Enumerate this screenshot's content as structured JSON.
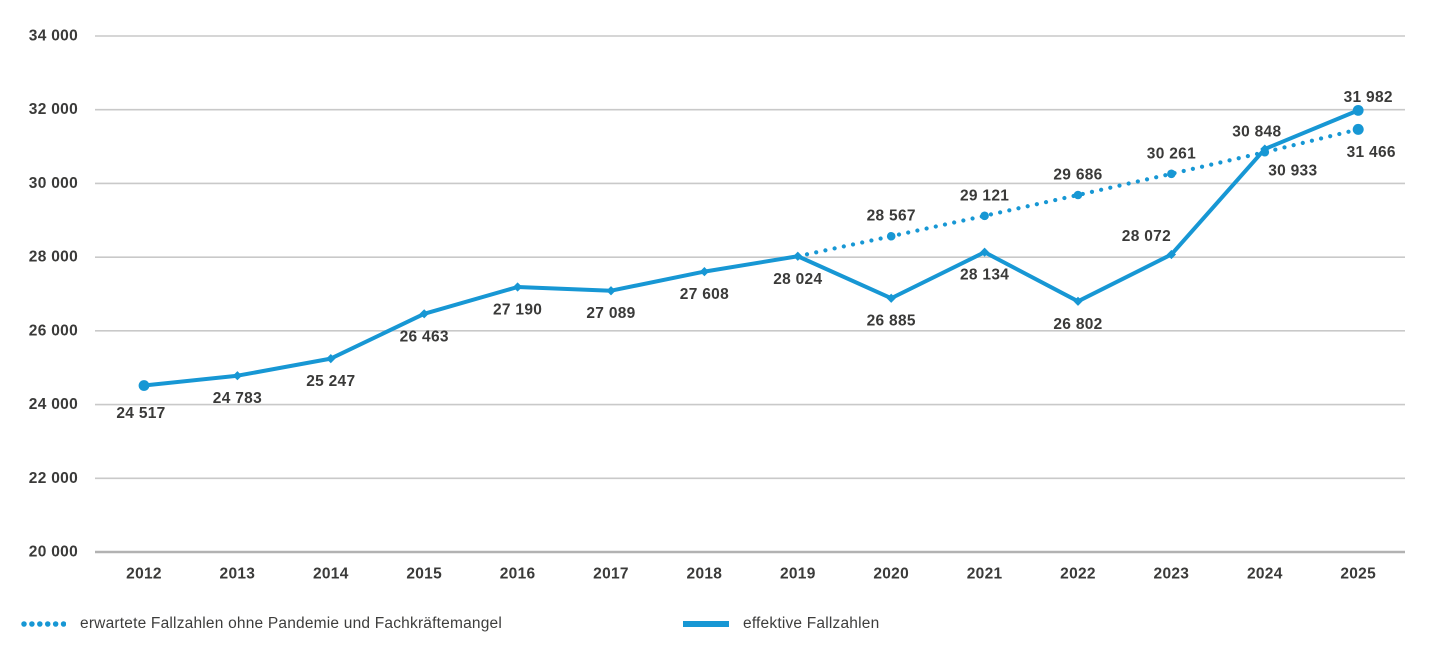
{
  "colors": {
    "line_blue": "#1797d4",
    "label_text": "#3a3a39",
    "gridline": "#c9c9c9",
    "axis_line": "#b2b2b2"
  },
  "legend": {
    "expected": {
      "label": "erwartete Fallzahlen ohne Pandemie und Fachkräftemangel"
    },
    "effective": {
      "label": "effektive Fallzahlen"
    }
  },
  "chart_data": {
    "type": "line",
    "x": [
      2012,
      2013,
      2014,
      2015,
      2016,
      2017,
      2018,
      2019,
      2020,
      2021,
      2022,
      2023,
      2024,
      2025
    ],
    "series": [
      {
        "name": "effektive Fallzahlen",
        "style": "solid",
        "start_year": 2012,
        "values": [
          24517,
          24783,
          25247,
          26463,
          27190,
          27089,
          27608,
          28024,
          26885,
          28134,
          26802,
          28072,
          30933,
          31982
        ]
      },
      {
        "name": "erwartete Fallzahlen ohne Pandemie und Fachkräftemangel",
        "style": "dotted",
        "start_year": 2019,
        "values": [
          28024,
          28567,
          29121,
          29686,
          30261,
          30848,
          31466
        ]
      }
    ],
    "ylim": [
      20000,
      34000
    ],
    "y_ticks": [
      20000,
      22000,
      24000,
      26000,
      28000,
      30000,
      32000,
      34000
    ],
    "x_tick_labels": [
      "2012",
      "2013",
      "2014",
      "2015",
      "2016",
      "2017",
      "2018",
      "2019",
      "2020",
      "2021",
      "2022",
      "2023",
      "2024",
      "2025"
    ],
    "grid": true,
    "legend_position": "bottom-left"
  }
}
